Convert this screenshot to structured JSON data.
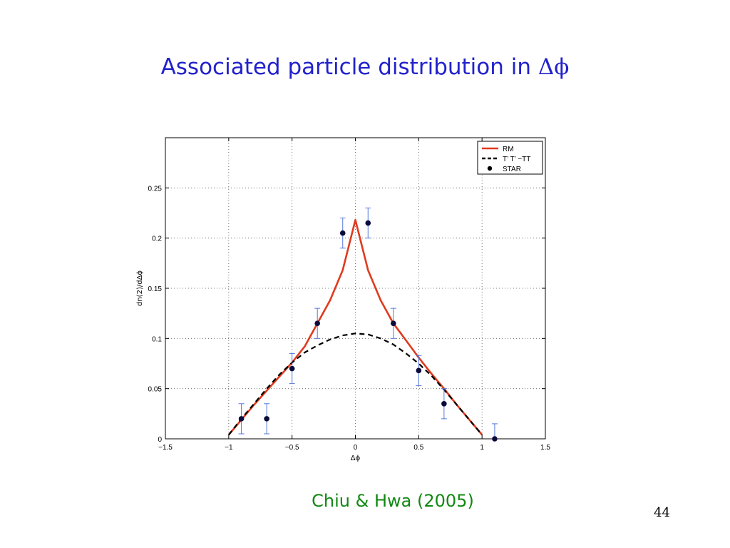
{
  "slide": {
    "title": "Associated particle distribution in ",
    "title_symbol": "Δϕ",
    "citation": "Chiu & Hwa (2005)",
    "page_number": "44",
    "title_color": "#2222cc",
    "citation_color": "#118811"
  },
  "chart_data": {
    "type": "line",
    "title": "",
    "xlabel": "Δϕ",
    "ylabel": "dn(2)/dΔϕ",
    "xlim": [
      -1.5,
      1.5
    ],
    "ylim": [
      0,
      0.3
    ],
    "xticks": [
      -1.5,
      -1,
      -0.5,
      0,
      0.5,
      1,
      1.5
    ],
    "xtick_labels": [
      "−1.5",
      "−1",
      "−0.5",
      "0",
      "0.5",
      "1",
      "1.5"
    ],
    "yticks": [
      0,
      0.05,
      0.1,
      0.15,
      0.2,
      0.25
    ],
    "ytick_labels": [
      "0",
      "0.05",
      "0.1",
      "0.15",
      "0.2",
      "0.25"
    ],
    "grid": true,
    "legend_position": "top-right",
    "series": [
      {
        "name": "RM",
        "style": "solid",
        "color": "#e03a1e",
        "x": [
          -1.0,
          -0.9,
          -0.8,
          -0.7,
          -0.6,
          -0.5,
          -0.4,
          -0.3,
          -0.2,
          -0.1,
          0.0,
          0.1,
          0.2,
          0.3,
          0.4,
          0.5,
          0.6,
          0.7,
          0.8,
          0.9,
          1.0
        ],
        "y": [
          0.004,
          0.019,
          0.034,
          0.048,
          0.062,
          0.076,
          0.092,
          0.115,
          0.138,
          0.168,
          0.218,
          0.168,
          0.138,
          0.115,
          0.098,
          0.081,
          0.065,
          0.05,
          0.034,
          0.019,
          0.004
        ]
      },
      {
        "name": "T’ T’ −TT",
        "style": "dashed",
        "color": "#000000",
        "x": [
          -1.0,
          -0.9,
          -0.8,
          -0.7,
          -0.6,
          -0.5,
          -0.4,
          -0.3,
          -0.2,
          -0.1,
          0.0,
          0.1,
          0.2,
          0.3,
          0.4,
          0.5,
          0.6,
          0.7,
          0.8,
          0.9,
          1.0
        ],
        "y": [
          0.004,
          0.02,
          0.035,
          0.05,
          0.064,
          0.076,
          0.086,
          0.093,
          0.099,
          0.103,
          0.105,
          0.104,
          0.1,
          0.094,
          0.085,
          0.075,
          0.063,
          0.049,
          0.034,
          0.019,
          0.004
        ]
      },
      {
        "name": "STAR",
        "style": "markers",
        "color": "#0a0a3c",
        "errorbar_color": "#5577dd",
        "points": [
          {
            "x": -0.9,
            "y": 0.02,
            "err": 0.015
          },
          {
            "x": -0.7,
            "y": 0.02,
            "err": 0.015
          },
          {
            "x": -0.5,
            "y": 0.07,
            "err": 0.015
          },
          {
            "x": -0.3,
            "y": 0.115,
            "err": 0.015
          },
          {
            "x": -0.1,
            "y": 0.205,
            "err": 0.015
          },
          {
            "x": 0.1,
            "y": 0.215,
            "err": 0.015
          },
          {
            "x": 0.3,
            "y": 0.115,
            "err": 0.015
          },
          {
            "x": 0.5,
            "y": 0.068,
            "err": 0.015
          },
          {
            "x": 0.7,
            "y": 0.035,
            "err": 0.015
          },
          {
            "x": 1.1,
            "y": 0.0,
            "err": 0.015
          }
        ]
      }
    ]
  }
}
